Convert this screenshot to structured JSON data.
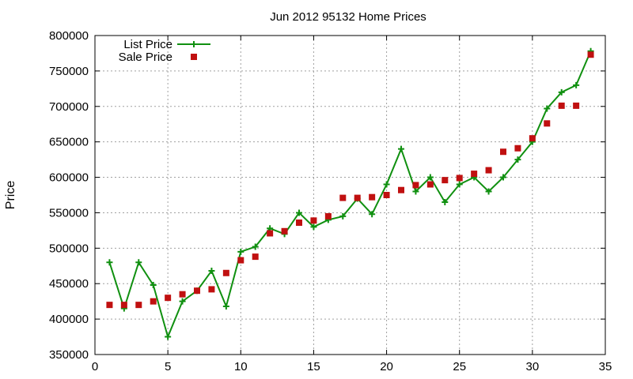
{
  "chart_data": {
    "type": "line",
    "title": "Jun 2012 95132 Home Prices",
    "xlabel": "",
    "ylabel": "Price",
    "xlim": [
      0,
      35
    ],
    "ylim": [
      350000,
      800000
    ],
    "x_ticks": [
      0,
      5,
      10,
      15,
      20,
      25,
      30,
      35
    ],
    "x_tick_labels": [
      "0",
      "5",
      "10",
      "15",
      "20",
      "25",
      "30",
      "35"
    ],
    "y_ticks": [
      350000,
      400000,
      450000,
      500000,
      550000,
      600000,
      650000,
      700000,
      750000,
      800000
    ],
    "y_tick_labels": [
      "350000",
      "400000",
      "450000",
      "500000",
      "550000",
      "600000",
      "650000",
      "700000",
      "750000",
      "800000"
    ],
    "grid": true,
    "legend_position": "top-left",
    "series": [
      {
        "name": "List Price",
        "style": "line-with-plus-markers",
        "color": "#109010",
        "x": [
          1,
          2,
          3,
          4,
          5,
          6,
          7,
          8,
          9,
          10,
          11,
          12,
          13,
          14,
          15,
          16,
          17,
          18,
          19,
          20,
          21,
          22,
          23,
          24,
          25,
          26,
          27,
          28,
          29,
          30,
          31,
          32,
          33,
          34
        ],
        "y": [
          480000,
          415000,
          480000,
          448000,
          375000,
          425000,
          440000,
          468000,
          418000,
          495000,
          502000,
          528000,
          520000,
          550000,
          530000,
          540000,
          545000,
          570000,
          548000,
          590000,
          640000,
          580000,
          600000,
          565000,
          590000,
          600000,
          580000,
          600000,
          625000,
          650000,
          697000,
          720000,
          730000,
          778000
        ]
      },
      {
        "name": "Sale Price",
        "style": "square-markers",
        "color": "#c01010",
        "x": [
          1,
          2,
          3,
          4,
          5,
          6,
          7,
          8,
          9,
          10,
          11,
          12,
          13,
          14,
          15,
          16,
          17,
          18,
          19,
          20,
          21,
          22,
          23,
          24,
          25,
          26,
          27,
          28,
          29,
          30,
          31,
          32,
          33,
          34
        ],
        "y": [
          420000,
          420000,
          420000,
          425000,
          430000,
          435000,
          440000,
          442000,
          465000,
          483000,
          488000,
          521000,
          524000,
          536000,
          539000,
          545000,
          571000,
          571000,
          572000,
          575000,
          582000,
          589000,
          590000,
          596000,
          599000,
          605000,
          610000,
          636000,
          641000,
          655000,
          676000,
          701000,
          701000,
          773000
        ]
      }
    ]
  }
}
